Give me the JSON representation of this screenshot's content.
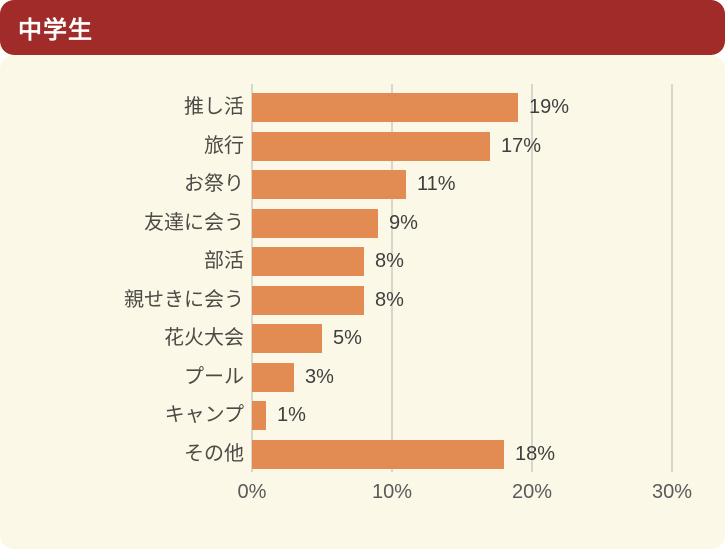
{
  "header": {
    "title": "中学生"
  },
  "chart_data": {
    "type": "bar",
    "orientation": "horizontal",
    "title": "中学生",
    "categories": [
      "推し活",
      "旅行",
      "お祭り",
      "友達に会う",
      "部活",
      "親せきに会う",
      "花火大会",
      "プール",
      "キャンプ",
      "その他"
    ],
    "values": [
      19,
      17,
      11,
      9,
      8,
      8,
      5,
      3,
      1,
      18
    ],
    "value_labels": [
      "19%",
      "17%",
      "11%",
      "9%",
      "8%",
      "8%",
      "5%",
      "3%",
      "1%",
      "18%"
    ],
    "x_ticks": [
      0,
      10,
      20,
      30
    ],
    "x_tick_labels": [
      "0%",
      "10%",
      "20%",
      "30%"
    ],
    "xlim": [
      0,
      30
    ],
    "grid": "vertical-gridlines-on",
    "legend": "none",
    "unit": "%"
  },
  "theme": {
    "header_bg": "#a02b28",
    "header_text": "#ffffff",
    "panel_bg": "#fcf8e8",
    "bar_color": "#e28b52",
    "grid_color": "#d9d6cc",
    "category_text": "#4d4a45",
    "value_text": "#3f3f3f",
    "tick_text": "#5a5a5a",
    "page_bg": "#ffffff"
  }
}
